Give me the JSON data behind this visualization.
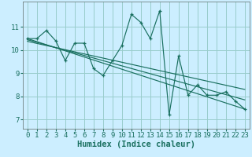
{
  "title": "",
  "xlabel": "Humidex (Indice chaleur)",
  "bg_color": "#cceeff",
  "grid_color": "#99cccc",
  "line_color": "#1a7060",
  "xlim": [
    -0.5,
    23.5
  ],
  "ylim": [
    6.6,
    12.1
  ],
  "yticks": [
    7,
    8,
    9,
    10,
    11
  ],
  "xticks": [
    0,
    1,
    2,
    3,
    4,
    5,
    6,
    7,
    8,
    9,
    10,
    11,
    12,
    13,
    14,
    15,
    16,
    17,
    18,
    19,
    20,
    21,
    22,
    23
  ],
  "main_x": [
    0,
    1,
    2,
    3,
    4,
    5,
    6,
    7,
    8,
    9,
    10,
    11,
    12,
    13,
    14,
    15,
    16,
    17,
    18,
    19,
    20,
    21,
    22,
    23
  ],
  "main_y": [
    10.5,
    10.5,
    10.85,
    10.4,
    9.55,
    10.3,
    10.3,
    9.2,
    8.9,
    9.55,
    10.2,
    11.55,
    11.2,
    10.5,
    11.7,
    7.2,
    9.75,
    8.05,
    8.5,
    8.05,
    8.05,
    8.2,
    7.8,
    7.45
  ],
  "reg_lines": [
    {
      "x": [
        0,
        23
      ],
      "y": [
        10.5,
        7.45
      ]
    },
    {
      "x": [
        0,
        23
      ],
      "y": [
        10.45,
        7.85
      ]
    },
    {
      "x": [
        0,
        23
      ],
      "y": [
        10.38,
        8.3
      ]
    }
  ],
  "tick_fontsize": 6.5,
  "label_fontsize": 7.5
}
